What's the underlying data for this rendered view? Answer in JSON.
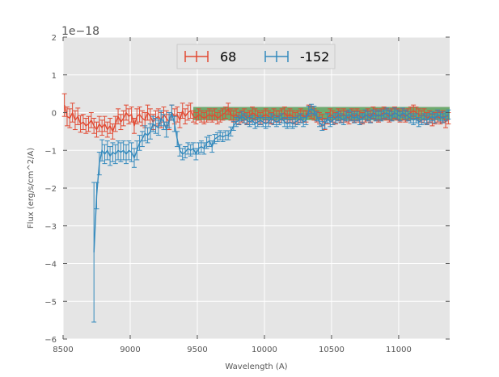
{
  "chart_data": {
    "type": "line",
    "xlabel": "Wavelength (A)",
    "ylabel": "Flux (erg/s/cm^2/A)",
    "y_multiplier_label": "1e−18",
    "xlim": [
      8500,
      11380
    ],
    "ylim": [
      -6,
      2
    ],
    "x_ticks": [
      8500,
      9000,
      9500,
      10000,
      10500,
      11000
    ],
    "x_tick_labels": [
      "8500",
      "9000",
      "9500",
      "10000",
      "10500",
      "11000"
    ],
    "y_ticks": [
      2,
      1,
      0,
      -1,
      -2,
      -3,
      -4,
      -5,
      -6
    ],
    "y_tick_labels": [
      "2",
      "1",
      "0",
      "−1",
      "−2",
      "−3",
      "−4",
      "−5",
      "−6"
    ],
    "grid": true,
    "legend_position": "top-center",
    "band": {
      "x_range": [
        9470,
        11380
      ],
      "y_range": [
        -0.2,
        0.15
      ],
      "color": "#2e8b2e"
    },
    "series": [
      {
        "name": "68",
        "color": "#e24a33",
        "x": [
          8510,
          8530,
          8550,
          8570,
          8590,
          8610,
          8630,
          8650,
          8670,
          8690,
          8710,
          8730,
          8750,
          8770,
          8790,
          8810,
          8830,
          8850,
          8870,
          8890,
          8910,
          8930,
          8950,
          8970,
          8990,
          9010,
          9030,
          9050,
          9070,
          9090,
          9110,
          9130,
          9150,
          9170,
          9190,
          9210,
          9230,
          9250,
          9270,
          9290,
          9310,
          9330,
          9350,
          9370,
          9390,
          9410,
          9430,
          9450,
          9470,
          9490,
          9510,
          9530,
          9550,
          9570,
          9590,
          9610,
          9630,
          9650,
          9670,
          9690,
          9710,
          9730,
          9750,
          9770,
          9790,
          9810,
          9830,
          9850,
          9870,
          9890,
          9910,
          9930,
          9950,
          9970,
          9990,
          10010,
          10030,
          10050,
          10070,
          10090,
          10110,
          10130,
          10150,
          10170,
          10190,
          10210,
          10230,
          10250,
          10270,
          10290,
          10310,
          10330,
          10350,
          10370,
          10390,
          10410,
          10430,
          10450,
          10470,
          10490,
          10510,
          10530,
          10550,
          10570,
          10590,
          10610,
          10630,
          10650,
          10670,
          10690,
          10710,
          10730,
          10750,
          10770,
          10790,
          10810,
          10830,
          10850,
          10870,
          10890,
          10910,
          10930,
          10950,
          10970,
          10990,
          11010,
          11030,
          11050,
          11070,
          11090,
          11110,
          11130,
          11150,
          11170,
          11190,
          11210,
          11230,
          11250,
          11270,
          11290,
          11310,
          11330,
          11350,
          11370
        ],
        "y": [
          0.2,
          -0.1,
          -0.15,
          0.0,
          -0.2,
          -0.1,
          -0.3,
          -0.25,
          -0.35,
          -0.3,
          -0.2,
          -0.35,
          -0.45,
          -0.3,
          -0.4,
          -0.3,
          -0.45,
          -0.35,
          -0.5,
          -0.3,
          -0.1,
          -0.25,
          -0.15,
          0.0,
          -0.1,
          -0.05,
          -0.35,
          -0.1,
          -0.05,
          -0.15,
          -0.2,
          0.0,
          -0.1,
          -0.25,
          -0.15,
          -0.1,
          -0.2,
          -0.05,
          -0.15,
          -0.25,
          0.0,
          -0.1,
          -0.05,
          -0.2,
          0.05,
          -0.1,
          0.0,
          0.05,
          -0.1,
          -0.15,
          -0.05,
          -0.1,
          -0.15,
          -0.1,
          -0.05,
          -0.1,
          -0.05,
          -0.15,
          -0.1,
          -0.05,
          0.0,
          0.1,
          -0.05,
          -0.1,
          -0.05,
          -0.15,
          -0.1,
          -0.05,
          -0.15,
          -0.1,
          0.0,
          -0.05,
          -0.1,
          -0.15,
          -0.1,
          -0.05,
          -0.1,
          -0.15,
          -0.05,
          -0.1,
          -0.1,
          -0.05,
          0.0,
          -0.1,
          -0.05,
          -0.1,
          -0.15,
          -0.1,
          -0.05,
          -0.1,
          -0.1,
          0.05,
          0.0,
          -0.05,
          -0.1,
          -0.15,
          -0.2,
          -0.3,
          -0.15,
          -0.05,
          -0.1,
          -0.15,
          -0.05,
          -0.1,
          -0.05,
          -0.1,
          -0.15,
          -0.05,
          -0.1,
          -0.05,
          -0.1,
          -0.15,
          -0.1,
          -0.05,
          -0.1,
          0.0,
          -0.05,
          -0.1,
          -0.05,
          0.0,
          -0.05,
          -0.1,
          -0.05,
          0.0,
          -0.05,
          -0.1,
          -0.05,
          -0.1,
          -0.05,
          0.0,
          0.05,
          0.0,
          -0.05,
          -0.1,
          -0.05,
          -0.15,
          -0.1,
          -0.2,
          -0.15,
          -0.1,
          -0.15,
          -0.1,
          -0.25,
          -0.15
        ],
        "err": [
          0.3,
          0.25,
          0.25,
          0.25,
          0.25,
          0.22,
          0.22,
          0.2,
          0.2,
          0.2,
          0.2,
          0.2,
          0.2,
          0.2,
          0.2,
          0.2,
          0.2,
          0.2,
          0.2,
          0.2,
          0.2,
          0.2,
          0.2,
          0.2,
          0.2,
          0.2,
          0.2,
          0.2,
          0.2,
          0.2,
          0.2,
          0.2,
          0.2,
          0.2,
          0.2,
          0.2,
          0.2,
          0.2,
          0.2,
          0.2,
          0.2,
          0.2,
          0.2,
          0.2,
          0.2,
          0.2,
          0.2,
          0.2,
          0.15,
          0.15,
          0.15,
          0.15,
          0.15,
          0.15,
          0.15,
          0.15,
          0.15,
          0.15,
          0.15,
          0.15,
          0.15,
          0.15,
          0.15,
          0.15,
          0.15,
          0.15,
          0.15,
          0.15,
          0.15,
          0.15,
          0.15,
          0.15,
          0.15,
          0.15,
          0.15,
          0.15,
          0.15,
          0.15,
          0.15,
          0.15,
          0.15,
          0.15,
          0.15,
          0.15,
          0.15,
          0.15,
          0.15,
          0.15,
          0.15,
          0.15,
          0.15,
          0.15,
          0.15,
          0.15,
          0.15,
          0.15,
          0.15,
          0.15,
          0.15,
          0.15,
          0.15,
          0.15,
          0.15,
          0.15,
          0.15,
          0.15,
          0.15,
          0.15,
          0.15,
          0.15,
          0.15,
          0.15,
          0.15,
          0.15,
          0.15,
          0.15,
          0.15,
          0.15,
          0.15,
          0.15,
          0.15,
          0.15,
          0.15,
          0.15,
          0.15,
          0.15,
          0.15,
          0.15,
          0.15,
          0.15,
          0.15,
          0.15,
          0.15,
          0.15,
          0.15,
          0.15,
          0.15,
          0.15,
          0.15,
          0.15,
          0.15,
          0.15,
          0.15,
          0.15
        ]
      },
      {
        "name": "-152",
        "color": "#348abd",
        "x": [
          8730,
          8750,
          8770,
          8790,
          8810,
          8830,
          8850,
          8870,
          8890,
          8910,
          8930,
          8950,
          8970,
          8990,
          9010,
          9030,
          9050,
          9070,
          9090,
          9110,
          9130,
          9150,
          9170,
          9190,
          9210,
          9230,
          9250,
          9270,
          9290,
          9310,
          9330,
          9350,
          9370,
          9390,
          9410,
          9430,
          9450,
          9470,
          9490,
          9510,
          9530,
          9550,
          9570,
          9590,
          9610,
          9630,
          9650,
          9670,
          9690,
          9710,
          9730,
          9750,
          9770,
          9790,
          9810,
          9830,
          9850,
          9870,
          9890,
          9910,
          9930,
          9950,
          9970,
          9990,
          10010,
          10030,
          10050,
          10070,
          10090,
          10110,
          10130,
          10150,
          10170,
          10190,
          10210,
          10230,
          10250,
          10270,
          10290,
          10310,
          10330,
          10350,
          10370,
          10390,
          10410,
          10430,
          10450,
          10470,
          10490,
          10510,
          10530,
          10550,
          10570,
          10590,
          10610,
          10630,
          10650,
          10670,
          10690,
          10710,
          10730,
          10750,
          10770,
          10790,
          10810,
          10830,
          10850,
          10870,
          10890,
          10910,
          10930,
          10950,
          10970,
          10990,
          11010,
          11030,
          11050,
          11070,
          11090,
          11110,
          11130,
          11150,
          11170,
          11190,
          11210,
          11230,
          11250,
          11270,
          11290,
          11310,
          11330,
          11350,
          11370
        ],
        "y": [
          -3.7,
          -2.2,
          -1.35,
          -1.0,
          -1.1,
          -1.0,
          -1.15,
          -1.05,
          -1.1,
          -1.0,
          -1.05,
          -1.0,
          -1.1,
          -1.0,
          -1.05,
          -1.2,
          -1.0,
          -0.8,
          -0.7,
          -0.55,
          -0.6,
          -0.5,
          -0.3,
          -0.35,
          -0.4,
          -0.15,
          -0.25,
          -0.45,
          -0.2,
          0.0,
          -0.3,
          -0.7,
          -1.0,
          -1.1,
          -1.05,
          -0.95,
          -1.0,
          -0.95,
          -1.1,
          -0.95,
          -0.9,
          -0.95,
          -0.8,
          -0.75,
          -0.9,
          -0.7,
          -0.65,
          -0.6,
          -0.65,
          -0.6,
          -0.6,
          -0.5,
          -0.35,
          -0.25,
          -0.2,
          -0.1,
          -0.15,
          -0.2,
          -0.25,
          -0.2,
          -0.3,
          -0.25,
          -0.2,
          -0.25,
          -0.3,
          -0.25,
          -0.15,
          -0.2,
          -0.25,
          -0.2,
          -0.15,
          -0.25,
          -0.3,
          -0.25,
          -0.3,
          -0.25,
          -0.2,
          -0.15,
          -0.25,
          -0.2,
          0.05,
          0.1,
          0.05,
          -0.1,
          -0.25,
          -0.35,
          -0.3,
          -0.15,
          -0.25,
          -0.2,
          -0.15,
          -0.1,
          -0.15,
          -0.2,
          -0.1,
          -0.05,
          -0.1,
          -0.15,
          -0.1,
          -0.2,
          -0.15,
          -0.05,
          -0.1,
          -0.15,
          -0.05,
          -0.1,
          -0.05,
          -0.1,
          -0.05,
          0.0,
          -0.05,
          -0.1,
          0.0,
          -0.05,
          -0.1,
          0.0,
          -0.05,
          -0.1,
          -0.15,
          -0.2,
          -0.15,
          -0.25,
          -0.2,
          -0.15,
          -0.2,
          -0.15,
          -0.1,
          -0.15,
          -0.05,
          -0.1,
          -0.15,
          -0.1,
          -0.05
        ],
        "err": [
          1.85,
          0.35,
          0.3,
          0.28,
          0.25,
          0.25,
          0.25,
          0.25,
          0.25,
          0.25,
          0.25,
          0.25,
          0.25,
          0.25,
          0.25,
          0.25,
          0.25,
          0.2,
          0.2,
          0.2,
          0.2,
          0.2,
          0.2,
          0.2,
          0.2,
          0.2,
          0.2,
          0.2,
          0.2,
          0.2,
          0.2,
          0.2,
          0.15,
          0.15,
          0.15,
          0.15,
          0.15,
          0.15,
          0.15,
          0.15,
          0.15,
          0.15,
          0.15,
          0.15,
          0.15,
          0.12,
          0.12,
          0.12,
          0.12,
          0.12,
          0.12,
          0.12,
          0.12,
          0.12,
          0.12,
          0.12,
          0.12,
          0.12,
          0.12,
          0.12,
          0.12,
          0.12,
          0.12,
          0.12,
          0.12,
          0.12,
          0.12,
          0.12,
          0.12,
          0.12,
          0.12,
          0.12,
          0.12,
          0.12,
          0.12,
          0.12,
          0.12,
          0.12,
          0.12,
          0.12,
          0.12,
          0.12,
          0.12,
          0.12,
          0.12,
          0.12,
          0.12,
          0.12,
          0.12,
          0.12,
          0.12,
          0.12,
          0.12,
          0.12,
          0.12,
          0.12,
          0.12,
          0.12,
          0.12,
          0.12,
          0.12,
          0.12,
          0.12,
          0.12,
          0.12,
          0.12,
          0.12,
          0.12,
          0.12,
          0.12,
          0.12,
          0.12,
          0.12,
          0.12,
          0.12,
          0.12,
          0.12,
          0.12,
          0.12,
          0.12,
          0.12,
          0.12,
          0.12,
          0.12,
          0.12,
          0.12,
          0.12,
          0.12,
          0.12,
          0.12,
          0.12,
          0.12,
          0.12
        ]
      }
    ]
  }
}
